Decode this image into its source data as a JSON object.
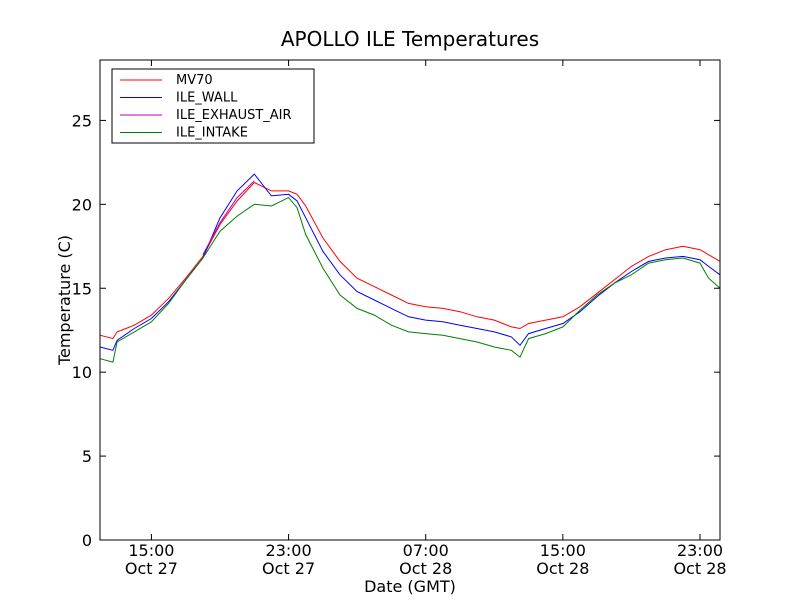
{
  "chart_data": {
    "type": "line",
    "title": "APOLLO ILE Temperatures",
    "xlabel": "Date (GMT)",
    "ylabel": "Temperature (C)",
    "ylim": [
      0,
      28.6
    ],
    "xlim": [
      "Oct 27 12:00",
      "Oct 29 00:10"
    ],
    "yticks": [
      0,
      5,
      10,
      15,
      20,
      25
    ],
    "xticks": [
      {
        "time": "Oct 27 15:00",
        "label_time": "15:00",
        "label_date": "Oct 27"
      },
      {
        "time": "Oct 27 23:00",
        "label_time": "23:00",
        "label_date": "Oct 27"
      },
      {
        "time": "Oct 28 07:00",
        "label_time": "07:00",
        "label_date": "Oct 28"
      },
      {
        "time": "Oct 28 15:00",
        "label_time": "15:00",
        "label_date": "Oct 28"
      },
      {
        "time": "Oct 28 23:00",
        "label_time": "23:00",
        "label_date": "Oct 28"
      }
    ],
    "grid": false,
    "legend_position": "top-left",
    "series": [
      {
        "name": "MV70",
        "color": "#ff0000",
        "points": [
          [
            "Oct 27 12:00",
            12.2
          ],
          [
            "Oct 27 12:45",
            12.0
          ],
          [
            "Oct 27 13:00",
            12.4
          ],
          [
            "Oct 27 14:00",
            12.8
          ],
          [
            "Oct 27 15:00",
            13.4
          ],
          [
            "Oct 27 16:00",
            14.4
          ],
          [
            "Oct 27 17:00",
            15.6
          ],
          [
            "Oct 27 18:00",
            16.9
          ],
          [
            "Oct 27 19:00",
            18.8
          ],
          [
            "Oct 27 20:00",
            20.2
          ],
          [
            "Oct 27 21:00",
            21.3
          ],
          [
            "Oct 27 22:00",
            20.8
          ],
          [
            "Oct 27 23:00",
            20.8
          ],
          [
            "Oct 27 23:30",
            20.6
          ],
          [
            "Oct 28 00:00",
            19.9
          ],
          [
            "Oct 28 01:00",
            18.0
          ],
          [
            "Oct 28 02:00",
            16.6
          ],
          [
            "Oct 28 03:00",
            15.6
          ],
          [
            "Oct 28 04:00",
            15.1
          ],
          [
            "Oct 28 05:00",
            14.6
          ],
          [
            "Oct 28 06:00",
            14.1
          ],
          [
            "Oct 28 07:00",
            13.9
          ],
          [
            "Oct 28 08:00",
            13.8
          ],
          [
            "Oct 28 09:00",
            13.6
          ],
          [
            "Oct 28 10:00",
            13.3
          ],
          [
            "Oct 28 11:00",
            13.1
          ],
          [
            "Oct 28 12:00",
            12.7
          ],
          [
            "Oct 28 12:30",
            12.6
          ],
          [
            "Oct 28 13:00",
            12.9
          ],
          [
            "Oct 28 14:00",
            13.1
          ],
          [
            "Oct 28 15:00",
            13.3
          ],
          [
            "Oct 28 16:00",
            13.9
          ],
          [
            "Oct 28 17:00",
            14.7
          ],
          [
            "Oct 28 18:00",
            15.5
          ],
          [
            "Oct 28 19:00",
            16.3
          ],
          [
            "Oct 28 20:00",
            16.9
          ],
          [
            "Oct 28 21:00",
            17.3
          ],
          [
            "Oct 28 22:00",
            17.5
          ],
          [
            "Oct 28 23:00",
            17.3
          ],
          [
            "Oct 28 23:30",
            17.0
          ],
          [
            "Oct 29 00:10",
            16.6
          ]
        ]
      },
      {
        "name": "ILE_WALL",
        "color": "#0000ff",
        "points": [
          [
            "Oct 27 12:00",
            11.5
          ],
          [
            "Oct 27 12:45",
            11.3
          ],
          [
            "Oct 27 13:00",
            11.9
          ],
          [
            "Oct 27 14:00",
            12.6
          ],
          [
            "Oct 27 15:00",
            13.2
          ],
          [
            "Oct 27 16:00",
            14.2
          ],
          [
            "Oct 27 17:00",
            15.5
          ],
          [
            "Oct 27 18:00",
            16.8
          ],
          [
            "Oct 27 19:00",
            19.2
          ],
          [
            "Oct 27 20:00",
            20.8
          ],
          [
            "Oct 27 21:00",
            21.8
          ],
          [
            "Oct 27 22:00",
            20.5
          ],
          [
            "Oct 27 23:00",
            20.6
          ],
          [
            "Oct 27 23:30",
            20.2
          ],
          [
            "Oct 28 00:00",
            19.2
          ],
          [
            "Oct 28 01:00",
            17.2
          ],
          [
            "Oct 28 02:00",
            15.8
          ],
          [
            "Oct 28 03:00",
            14.8
          ],
          [
            "Oct 28 04:00",
            14.3
          ],
          [
            "Oct 28 05:00",
            13.8
          ],
          [
            "Oct 28 06:00",
            13.3
          ],
          [
            "Oct 28 07:00",
            13.1
          ],
          [
            "Oct 28 08:00",
            13.0
          ],
          [
            "Oct 28 09:00",
            12.8
          ],
          [
            "Oct 28 10:00",
            12.6
          ],
          [
            "Oct 28 11:00",
            12.4
          ],
          [
            "Oct 28 12:00",
            12.1
          ],
          [
            "Oct 28 12:30",
            11.6
          ],
          [
            "Oct 28 13:00",
            12.3
          ],
          [
            "Oct 28 14:00",
            12.6
          ],
          [
            "Oct 28 15:00",
            12.9
          ],
          [
            "Oct 28 16:00",
            13.6
          ],
          [
            "Oct 28 17:00",
            14.5
          ],
          [
            "Oct 28 18:00",
            15.3
          ],
          [
            "Oct 28 19:00",
            16.0
          ],
          [
            "Oct 28 20:00",
            16.6
          ],
          [
            "Oct 28 21:00",
            16.8
          ],
          [
            "Oct 28 22:00",
            16.9
          ],
          [
            "Oct 28 23:00",
            16.7
          ],
          [
            "Oct 28 23:30",
            16.3
          ],
          [
            "Oct 29 00:10",
            15.8
          ]
        ]
      },
      {
        "name": "ILE_EXHAUST_AIR",
        "color": "#bf00bf",
        "points": [
          [
            "Oct 27 18:00",
            17.0
          ],
          [
            "Oct 27 19:00",
            18.9
          ],
          [
            "Oct 27 20:00",
            20.4
          ],
          [
            "Oct 27 21:00",
            21.4
          ]
        ]
      },
      {
        "name": "ILE_INTAKE",
        "color": "#008000",
        "points": [
          [
            "Oct 27 12:00",
            10.8
          ],
          [
            "Oct 27 12:45",
            10.6
          ],
          [
            "Oct 27 13:00",
            11.8
          ],
          [
            "Oct 27 14:00",
            12.4
          ],
          [
            "Oct 27 15:00",
            13.0
          ],
          [
            "Oct 27 16:00",
            14.1
          ],
          [
            "Oct 27 17:00",
            15.5
          ],
          [
            "Oct 27 18:00",
            16.8
          ],
          [
            "Oct 27 19:00",
            18.4
          ],
          [
            "Oct 27 20:00",
            19.3
          ],
          [
            "Oct 27 21:00",
            20.0
          ],
          [
            "Oct 27 22:00",
            19.9
          ],
          [
            "Oct 27 23:00",
            20.4
          ],
          [
            "Oct 27 23:30",
            19.8
          ],
          [
            "Oct 28 00:00",
            18.2
          ],
          [
            "Oct 28 01:00",
            16.2
          ],
          [
            "Oct 28 02:00",
            14.6
          ],
          [
            "Oct 28 03:00",
            13.8
          ],
          [
            "Oct 28 04:00",
            13.4
          ],
          [
            "Oct 28 05:00",
            12.8
          ],
          [
            "Oct 28 06:00",
            12.4
          ],
          [
            "Oct 28 07:00",
            12.3
          ],
          [
            "Oct 28 08:00",
            12.2
          ],
          [
            "Oct 28 09:00",
            12.0
          ],
          [
            "Oct 28 10:00",
            11.8
          ],
          [
            "Oct 28 11:00",
            11.5
          ],
          [
            "Oct 28 12:00",
            11.3
          ],
          [
            "Oct 28 12:30",
            10.9
          ],
          [
            "Oct 28 13:00",
            12.0
          ],
          [
            "Oct 28 14:00",
            12.3
          ],
          [
            "Oct 28 15:00",
            12.7
          ],
          [
            "Oct 28 16:00",
            13.7
          ],
          [
            "Oct 28 17:00",
            14.6
          ],
          [
            "Oct 28 18:00",
            15.3
          ],
          [
            "Oct 28 19:00",
            15.8
          ],
          [
            "Oct 28 20:00",
            16.5
          ],
          [
            "Oct 28 21:00",
            16.7
          ],
          [
            "Oct 28 22:00",
            16.8
          ],
          [
            "Oct 28 23:00",
            16.5
          ],
          [
            "Oct 28 23:30",
            15.6
          ],
          [
            "Oct 29 00:10",
            15.0
          ]
        ]
      }
    ]
  }
}
